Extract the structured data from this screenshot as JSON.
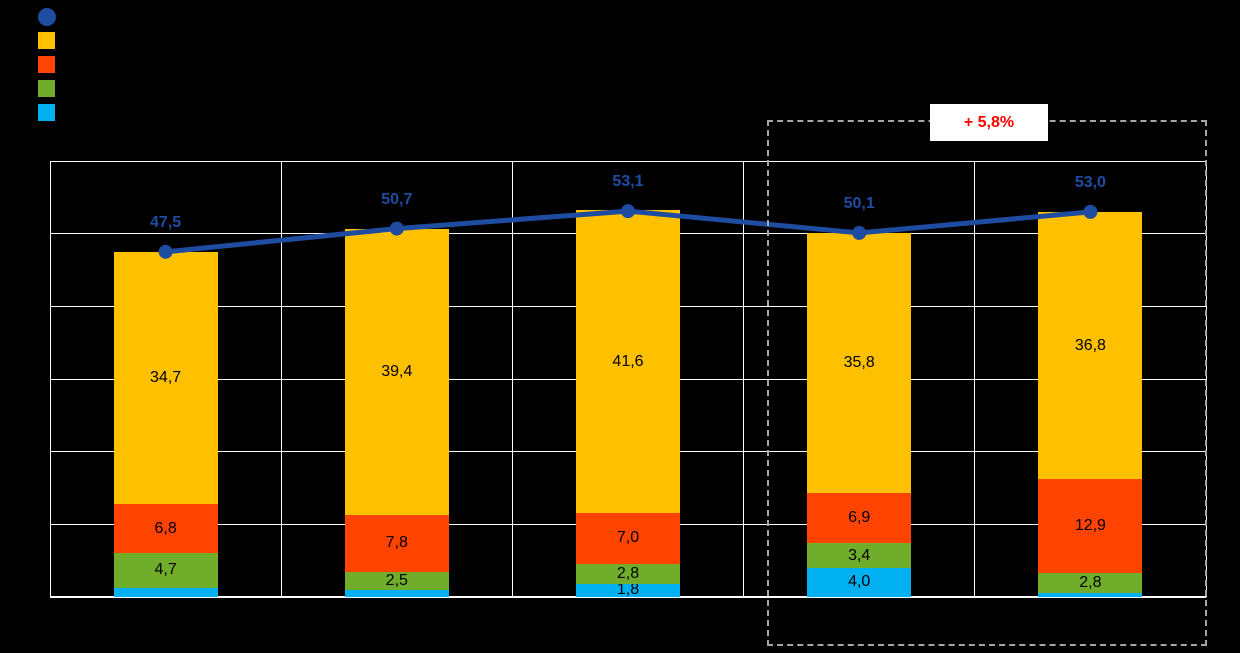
{
  "annotation": {
    "label": "+ 5,8%",
    "color": "#FF0000"
  },
  "legend": {
    "items": [
      {
        "name": "total-line",
        "shape": "circle",
        "color": "#1E4CA1"
      },
      {
        "name": "orange-series",
        "shape": "square",
        "color": "#FFC000"
      },
      {
        "name": "red-series",
        "shape": "square",
        "color": "#FF4300"
      },
      {
        "name": "green-series",
        "shape": "square",
        "color": "#70AD2B"
      },
      {
        "name": "cyan-series",
        "shape": "square",
        "color": "#00B0F0"
      }
    ]
  },
  "chart_data": {
    "type": "bar",
    "subtype": "stacked-bars-with-total-line",
    "categories": [
      "",
      "",
      "",
      "",
      ""
    ],
    "stack_order_bottom_to_top": [
      "cyan",
      "green",
      "red",
      "orange"
    ],
    "series": [
      {
        "name": "cyan",
        "color": "#00B0F0",
        "values": [
          1.3,
          1.0,
          1.8,
          4.0,
          0.5
        ],
        "labels": [
          null,
          null,
          "1,8",
          "4,0",
          null
        ]
      },
      {
        "name": "green",
        "color": "#70AD2B",
        "values": [
          4.7,
          2.5,
          2.8,
          3.4,
          2.8
        ],
        "labels": [
          "4,7",
          "2,5",
          "2,8",
          "3,4",
          "2,8"
        ]
      },
      {
        "name": "red",
        "color": "#FF4300",
        "values": [
          6.8,
          7.8,
          7.0,
          6.9,
          12.9
        ],
        "labels": [
          "6,8",
          "7,8",
          "7,0",
          "6,9",
          "12,9"
        ]
      },
      {
        "name": "orange",
        "color": "#FFC000",
        "values": [
          34.7,
          39.4,
          41.6,
          35.8,
          36.8
        ],
        "labels": [
          "34,7",
          "39,4",
          "41,6",
          "35,8",
          "36,8"
        ]
      }
    ],
    "line": {
      "name": "total",
      "color": "#1E4CA1",
      "values": [
        47.5,
        50.7,
        53.1,
        50.1,
        53.0
      ],
      "labels": [
        "47,5",
        "50,7",
        "53,1",
        "50,1",
        "53,0"
      ]
    },
    "ylim": [
      0,
      60
    ],
    "y_gridline_step": 10,
    "grid": true,
    "highlight": {
      "category_indexes": [
        3,
        4
      ],
      "label": "+ 5,8%"
    },
    "grid_color": "#FFFFFF",
    "background_color": "#000000"
  }
}
